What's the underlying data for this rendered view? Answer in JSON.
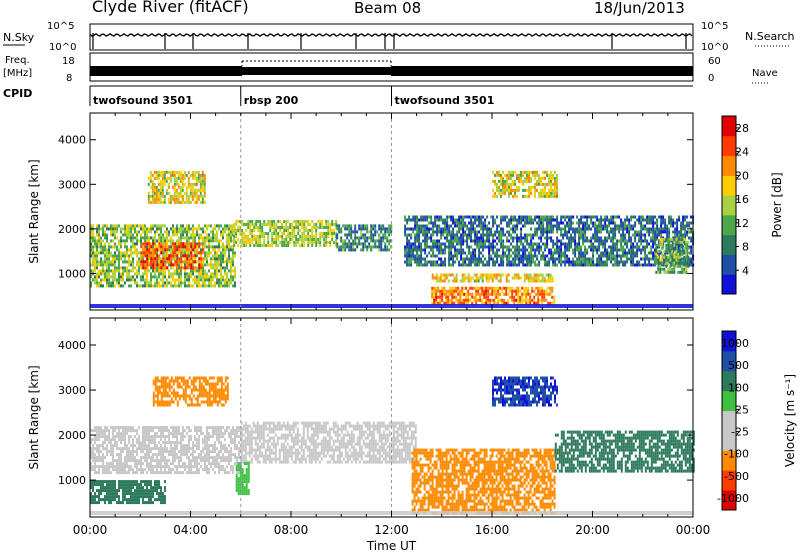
{
  "header": {
    "station": "Clyde River (fitACF)",
    "beam": "Beam 08",
    "date": "18/Jun/2013"
  },
  "nsky": {
    "left_label": "N.Sky",
    "right_label": "N.Search",
    "ticks_left": [
      "10^5",
      "10^0"
    ],
    "ticks_right": [
      "10^5",
      "10^0"
    ]
  },
  "freq": {
    "label_line1": "Freq.",
    "label_line2": "[MHz]",
    "ticks_left": [
      "18",
      "8"
    ],
    "right_label": "Nave",
    "ticks_right": [
      "60",
      "0"
    ]
  },
  "cpid": {
    "label": "CPID",
    "segments": [
      {
        "name": "twofsound 3501",
        "start": 0,
        "end": 6
      },
      {
        "name": "rbsp 200",
        "start": 6,
        "end": 12
      },
      {
        "name": "twofsound 3501",
        "start": 12,
        "end": 24
      }
    ]
  },
  "colors": {
    "power_scale": [
      "#1010d8",
      "#1f4fa8",
      "#2e7a5c",
      "#4ca64c",
      "#a8d040",
      "#ffcc00",
      "#ff8a00",
      "#ff3c00",
      "#e00000"
    ],
    "velocity_scale": [
      "#e00000",
      "#ff3c00",
      "#ff8a00",
      "#c8c8c8",
      "#c8c8c8",
      "#3ec040",
      "#2e7a5c",
      "#1f4fa8",
      "#1010d8"
    ]
  },
  "chart_data": [
    {
      "type": "heatmap",
      "name": "power",
      "ylabel": "Slant Range [km]",
      "ylim": [
        180,
        4600
      ],
      "xlim": [
        0,
        24
      ],
      "yticks": [
        "1000",
        "2000",
        "3000",
        "4000"
      ],
      "colorbar": {
        "label": "Power [dB]",
        "tick_labels": [
          "4",
          "8",
          "12",
          "16",
          "20",
          "24",
          "28"
        ],
        "range": [
          0,
          30
        ]
      },
      "regions": [
        {
          "t0": 0.0,
          "t1": 5.8,
          "r0": 700,
          "r1": 2100,
          "value": 14
        },
        {
          "t0": 2.0,
          "t1": 4.5,
          "r0": 1100,
          "r1": 1700,
          "value": 24
        },
        {
          "t0": 2.3,
          "t1": 4.6,
          "r0": 2600,
          "r1": 3300,
          "value": 17
        },
        {
          "t0": 5.7,
          "t1": 9.8,
          "r0": 1600,
          "r1": 2200,
          "value": 15
        },
        {
          "t0": 9.8,
          "t1": 12.0,
          "r0": 1500,
          "r1": 2100,
          "value": 9
        },
        {
          "t0": 12.5,
          "t1": 24.0,
          "r0": 1200,
          "r1": 2300,
          "value": 7
        },
        {
          "t0": 13.5,
          "t1": 18.5,
          "r0": 300,
          "r1": 700,
          "value": 22
        },
        {
          "t0": 13.6,
          "t1": 18.4,
          "r0": 850,
          "r1": 1000,
          "value": 18
        },
        {
          "t0": 16.0,
          "t1": 18.6,
          "r0": 2700,
          "r1": 3300,
          "value": 17
        },
        {
          "t0": 22.5,
          "t1": 23.8,
          "r0": 1000,
          "r1": 1800,
          "value": 12
        }
      ]
    },
    {
      "type": "heatmap",
      "name": "velocity",
      "ylabel": "Slant Range [km]",
      "xlabel": "Time UT",
      "ylim": [
        180,
        4600
      ],
      "xlim": [
        0,
        24
      ],
      "yticks": [
        "1000",
        "2000",
        "3000",
        "4000"
      ],
      "xticks": [
        "00:00",
        "04:00",
        "08:00",
        "12:00",
        "16:00",
        "20:00",
        "00:00"
      ],
      "colorbar": {
        "label": "Velocity [m s⁻¹]",
        "tick_labels": [
          "1000",
          "500",
          "100",
          "25",
          "-25",
          "-100",
          "-500",
          "-1000"
        ]
      },
      "regions": [
        {
          "t0": 0.0,
          "t1": 6.0,
          "r0": 1200,
          "r1": 2200,
          "value": 0
        },
        {
          "t0": 6.0,
          "t1": 13.0,
          "r0": 1400,
          "r1": 2300,
          "value": 0
        },
        {
          "t0": 2.5,
          "t1": 5.5,
          "r0": 2700,
          "r1": 3300,
          "value": -200
        },
        {
          "t0": 5.8,
          "t1": 6.3,
          "r0": 700,
          "r1": 1400,
          "value": 70
        },
        {
          "t0": 12.8,
          "t1": 18.5,
          "r0": 250,
          "r1": 1700,
          "value": -200
        },
        {
          "t0": 16.0,
          "t1": 18.6,
          "r0": 2700,
          "r1": 3300,
          "value": 900
        },
        {
          "t0": 18.5,
          "t1": 24.0,
          "r0": 1200,
          "r1": 2100,
          "value": 300
        },
        {
          "t0": 0.0,
          "t1": 3.0,
          "r0": 500,
          "r1": 1000,
          "value": 300
        }
      ]
    }
  ]
}
